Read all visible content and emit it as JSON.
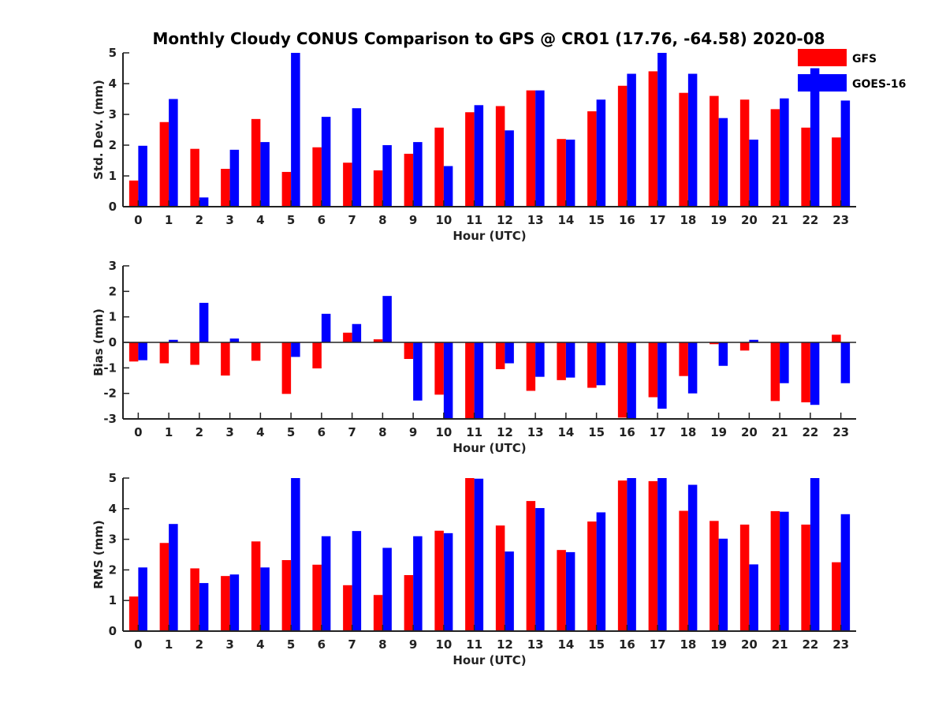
{
  "title": "Monthly Cloudy CONUS Comparison to GPS @ CRO1 (17.76, -64.58) 2020-08",
  "colors": {
    "gfs": "#ff0000",
    "goes": "#0000ff",
    "axis": "#222222"
  },
  "legend": [
    {
      "name": "GFS",
      "color": "#ff0000"
    },
    {
      "name": "GOES-16",
      "color": "#0000ff"
    }
  ],
  "chart_data": [
    {
      "type": "bar",
      "title": "Monthly Cloudy CONUS Comparison to GPS @ CRO1 (17.76, -64.58) 2020-08",
      "xlabel": "Hour (UTC)",
      "ylabel": "Std. Dev. (mm)",
      "categories": [
        "0",
        "1",
        "2",
        "3",
        "4",
        "5",
        "6",
        "7",
        "8",
        "9",
        "10",
        "11",
        "12",
        "13",
        "14",
        "15",
        "16",
        "17",
        "18",
        "19",
        "20",
        "21",
        "22",
        "23"
      ],
      "ylim": [
        0,
        5
      ],
      "yticks": [
        "0",
        "1",
        "2",
        "3",
        "4",
        "5"
      ],
      "series": [
        {
          "name": "GFS",
          "values": [
            0.85,
            2.75,
            1.88,
            1.23,
            2.85,
            1.13,
            1.93,
            1.43,
            1.18,
            1.72,
            2.57,
            3.07,
            3.27,
            3.78,
            2.2,
            3.1,
            3.93,
            4.4,
            3.7,
            3.6,
            3.48,
            3.17,
            2.57,
            2.25
          ]
        },
        {
          "name": "GOES-16",
          "values": [
            1.98,
            3.5,
            0.3,
            1.85,
            2.1,
            5.0,
            2.92,
            3.2,
            2.0,
            2.1,
            1.32,
            3.3,
            2.48,
            3.78,
            2.18,
            3.48,
            4.32,
            5.0,
            4.32,
            2.88,
            2.18,
            3.52,
            4.5,
            3.45
          ]
        }
      ]
    },
    {
      "type": "bar",
      "xlabel": "Hour (UTC)",
      "ylabel": "Bias (mm)",
      "categories": [
        "0",
        "1",
        "2",
        "3",
        "4",
        "5",
        "6",
        "7",
        "8",
        "9",
        "10",
        "11",
        "12",
        "13",
        "14",
        "15",
        "16",
        "17",
        "18",
        "19",
        "20",
        "21",
        "22",
        "23"
      ],
      "ylim": [
        -3,
        3
      ],
      "yticks": [
        "-3",
        "-2",
        "-1",
        "0",
        "1",
        "2",
        "3"
      ],
      "series": [
        {
          "name": "GFS",
          "values": [
            -0.75,
            -0.82,
            -0.88,
            -1.3,
            -0.72,
            -2.02,
            -1.02,
            0.38,
            0.12,
            -0.65,
            -2.05,
            -3.0,
            -1.05,
            -1.9,
            -1.48,
            -1.78,
            -2.95,
            -2.15,
            -1.32,
            -0.07,
            -0.32,
            -2.3,
            -2.35,
            0.3
          ]
        },
        {
          "name": "GOES-16",
          "values": [
            -0.7,
            0.1,
            1.55,
            0.15,
            0.0,
            -0.57,
            1.12,
            0.72,
            1.82,
            -2.28,
            -3.0,
            -3.0,
            -0.82,
            -1.35,
            -1.38,
            -1.68,
            -3.0,
            -2.6,
            -2.0,
            -0.92,
            0.1,
            -1.6,
            -2.45,
            -1.6
          ]
        }
      ]
    },
    {
      "type": "bar",
      "xlabel": "Hour (UTC)",
      "ylabel": "RMS (mm)",
      "categories": [
        "0",
        "1",
        "2",
        "3",
        "4",
        "5",
        "6",
        "7",
        "8",
        "9",
        "10",
        "11",
        "12",
        "13",
        "14",
        "15",
        "16",
        "17",
        "18",
        "19",
        "20",
        "21",
        "22",
        "23"
      ],
      "ylim": [
        0,
        5
      ],
      "yticks": [
        "0",
        "1",
        "2",
        "3",
        "4",
        "5"
      ],
      "series": [
        {
          "name": "GFS",
          "values": [
            1.13,
            2.88,
            2.05,
            1.8,
            2.93,
            2.32,
            2.17,
            1.5,
            1.18,
            1.83,
            3.28,
            5.0,
            3.45,
            4.25,
            2.65,
            3.58,
            4.92,
            4.9,
            3.93,
            3.6,
            3.48,
            3.92,
            3.48,
            2.25
          ]
        },
        {
          "name": "GOES-16",
          "values": [
            2.08,
            3.5,
            1.57,
            1.85,
            2.08,
            5.0,
            3.1,
            3.27,
            2.72,
            3.1,
            3.2,
            4.98,
            2.6,
            4.02,
            2.58,
            3.88,
            5.0,
            5.0,
            4.78,
            3.02,
            2.18,
            3.9,
            5.0,
            3.82
          ]
        }
      ]
    }
  ]
}
